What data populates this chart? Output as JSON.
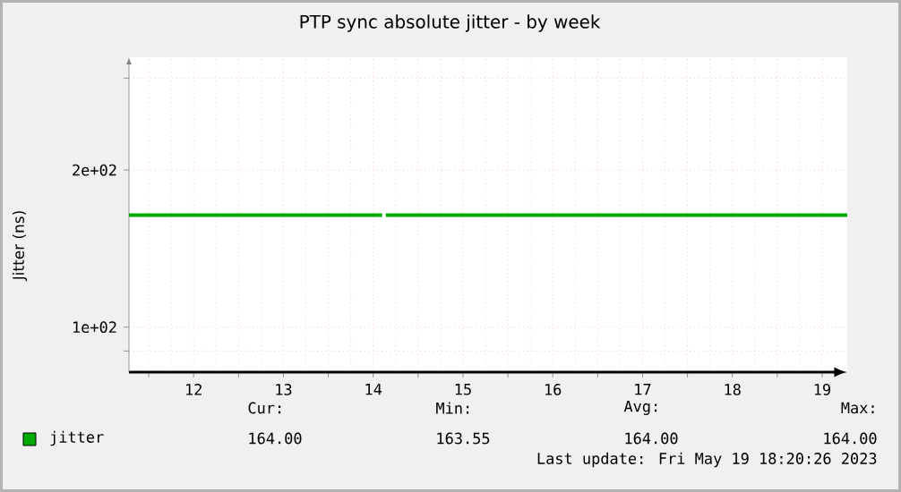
{
  "chart_data": {
    "type": "line",
    "title": "PTP sync absolute jitter - by week",
    "ylabel": "Jitter (ns)",
    "x": [
      11.78,
      14.6,
      14.62,
      14.64,
      19.78
    ],
    "series": [
      {
        "name": "jitter",
        "color": "#00aa00",
        "values": [
          164,
          164,
          null,
          164,
          164
        ]
      }
    ],
    "xlim": [
      11.78,
      19.78
    ],
    "xticks": [
      {
        "value": 12,
        "label": null
      },
      {
        "value": 12.5,
        "label": "12"
      },
      {
        "value": 13,
        "label": null
      },
      {
        "value": 13.5,
        "label": "13"
      },
      {
        "value": 14,
        "label": null
      },
      {
        "value": 14.5,
        "label": "14"
      },
      {
        "value": 15,
        "label": null
      },
      {
        "value": 15.5,
        "label": "15"
      },
      {
        "value": 16,
        "label": null
      },
      {
        "value": 16.5,
        "label": "16"
      },
      {
        "value": 17,
        "label": null
      },
      {
        "value": 17.5,
        "label": "17"
      },
      {
        "value": 18,
        "label": null
      },
      {
        "value": 18.5,
        "label": "18"
      },
      {
        "value": 19,
        "label": null
      },
      {
        "value": 19.5,
        "label": "19"
      }
    ],
    "ylim": [
      82,
      329
    ],
    "yticks": [
      {
        "value": 90,
        "label": null
      },
      {
        "value": 100,
        "label": "1e+02"
      },
      {
        "value": 200,
        "label": "2e+02"
      },
      {
        "value": 300,
        "label": null
      }
    ],
    "log": "y",
    "grid": true,
    "legend": "bottom left",
    "annotations": [
      "Cur:",
      "Min:",
      "Avg:",
      "Max:",
      "164.00",
      "163.55",
      "164.00",
      "164.00",
      "Last update: Fri May 19 18:20:26 2023"
    ]
  }
}
